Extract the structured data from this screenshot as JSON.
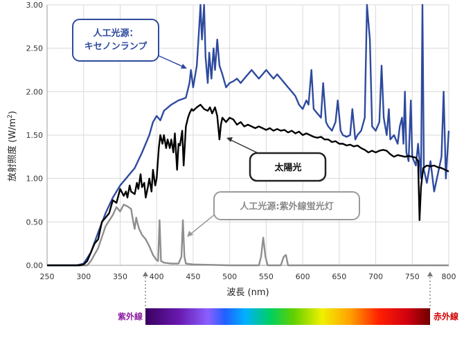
{
  "chart_data": {
    "type": "line",
    "xlabel": "波長 (nm)",
    "ylabel_main": "放射照度 (W/m",
    "ylabel_sup": "2",
    "ylabel_close": ")",
    "xlim": [
      250,
      800
    ],
    "ylim": [
      0,
      3
    ],
    "x_ticks": [
      "250",
      "300",
      "350",
      "400",
      "450",
      "500",
      "550",
      "600",
      "650",
      "700",
      "750",
      "800"
    ],
    "y_ticks": [
      "0.00",
      "0.50",
      "1.00",
      "1.50",
      "2.00",
      "2.50",
      "3.00"
    ],
    "grid": true,
    "series": [
      {
        "name": "人工光源：キセノンランプ",
        "color": "#2e4a9e",
        "points": [
          [
            250,
            0.0
          ],
          [
            290,
            0.0
          ],
          [
            300,
            0.02
          ],
          [
            310,
            0.15
          ],
          [
            320,
            0.38
          ],
          [
            330,
            0.6
          ],
          [
            340,
            0.78
          ],
          [
            350,
            0.92
          ],
          [
            360,
            1.02
          ],
          [
            370,
            1.12
          ],
          [
            380,
            1.3
          ],
          [
            390,
            1.5
          ],
          [
            395,
            1.65
          ],
          [
            400,
            1.72
          ],
          [
            405,
            1.67
          ],
          [
            410,
            1.78
          ],
          [
            420,
            1.85
          ],
          [
            430,
            1.9
          ],
          [
            440,
            1.93
          ],
          [
            445,
            2.1
          ],
          [
            447,
            2.25
          ],
          [
            450,
            2.05
          ],
          [
            455,
            2.3
          ],
          [
            458,
            2.7
          ],
          [
            460,
            3.0
          ],
          [
            462,
            2.6
          ],
          [
            465,
            3.0
          ],
          [
            467,
            2.4
          ],
          [
            470,
            2.1
          ],
          [
            472,
            2.45
          ],
          [
            475,
            2.15
          ],
          [
            478,
            2.5
          ],
          [
            480,
            2.25
          ],
          [
            483,
            2.6
          ],
          [
            486,
            2.3
          ],
          [
            490,
            2.2
          ],
          [
            495,
            2.05
          ],
          [
            500,
            2.1
          ],
          [
            505,
            2.12
          ],
          [
            510,
            2.15
          ],
          [
            515,
            2.1
          ],
          [
            520,
            2.15
          ],
          [
            525,
            2.2
          ],
          [
            530,
            2.25
          ],
          [
            535,
            2.2
          ],
          [
            540,
            2.15
          ],
          [
            545,
            2.2
          ],
          [
            550,
            2.25
          ],
          [
            555,
            2.2
          ],
          [
            560,
            2.15
          ],
          [
            565,
            2.2
          ],
          [
            570,
            2.15
          ],
          [
            575,
            2.1
          ],
          [
            580,
            2.05
          ],
          [
            585,
            2.0
          ],
          [
            590,
            1.95
          ],
          [
            595,
            1.85
          ],
          [
            600,
            1.8
          ],
          [
            605,
            1.9
          ],
          [
            608,
            1.85
          ],
          [
            612,
            2.25
          ],
          [
            615,
            1.8
          ],
          [
            620,
            1.75
          ],
          [
            625,
            1.7
          ],
          [
            628,
            2.1
          ],
          [
            632,
            1.65
          ],
          [
            635,
            1.6
          ],
          [
            640,
            1.55
          ],
          [
            645,
            1.65
          ],
          [
            648,
            1.9
          ],
          [
            652,
            1.55
          ],
          [
            655,
            1.5
          ],
          [
            660,
            1.48
          ],
          [
            665,
            1.5
          ],
          [
            668,
            1.8
          ],
          [
            672,
            1.45
          ],
          [
            675,
            1.5
          ],
          [
            680,
            1.55
          ],
          [
            685,
            1.7
          ],
          [
            688,
            3.0
          ],
          [
            692,
            2.6
          ],
          [
            695,
            1.6
          ],
          [
            700,
            1.55
          ],
          [
            705,
            1.65
          ],
          [
            708,
            2.3
          ],
          [
            711,
            1.7
          ],
          [
            715,
            1.5
          ],
          [
            718,
            1.8
          ],
          [
            720,
            1.45
          ],
          [
            725,
            1.5
          ],
          [
            730,
            1.4
          ],
          [
            733,
            1.6
          ],
          [
            736,
            1.7
          ],
          [
            738,
            1.4
          ],
          [
            740,
            2.0
          ],
          [
            742,
            1.3
          ],
          [
            745,
            1.2
          ],
          [
            748,
            1.9
          ],
          [
            750,
            1.25
          ],
          [
            755,
            1.15
          ],
          [
            758,
            1.4
          ],
          [
            760,
            1.2
          ],
          [
            762,
            1.0
          ],
          [
            764,
            3.0
          ],
          [
            766,
            1.1
          ],
          [
            770,
            0.95
          ],
          [
            775,
            1.2
          ],
          [
            780,
            0.85
          ],
          [
            785,
            1.05
          ],
          [
            790,
            1.25
          ],
          [
            793,
            2.0
          ],
          [
            796,
            1.0
          ],
          [
            800,
            1.55
          ]
        ]
      },
      {
        "name": "太陽光",
        "color": "#000000",
        "points": [
          [
            250,
            0.0
          ],
          [
            295,
            0.0
          ],
          [
            300,
            0.01
          ],
          [
            305,
            0.05
          ],
          [
            310,
            0.15
          ],
          [
            315,
            0.25
          ],
          [
            320,
            0.3
          ],
          [
            325,
            0.5
          ],
          [
            330,
            0.55
          ],
          [
            335,
            0.6
          ],
          [
            340,
            0.75
          ],
          [
            345,
            0.72
          ],
          [
            350,
            0.88
          ],
          [
            355,
            0.8
          ],
          [
            358,
            0.85
          ],
          [
            360,
            0.78
          ],
          [
            363,
            0.92
          ],
          [
            365,
            0.85
          ],
          [
            370,
            0.82
          ],
          [
            373,
            0.95
          ],
          [
            375,
            0.88
          ],
          [
            378,
            1.05
          ],
          [
            380,
            0.9
          ],
          [
            383,
            0.95
          ],
          [
            385,
            0.78
          ],
          [
            388,
            0.9
          ],
          [
            390,
            1.0
          ],
          [
            393,
            0.85
          ],
          [
            395,
            1.1
          ],
          [
            398,
            0.92
          ],
          [
            400,
            1.0
          ],
          [
            403,
            1.35
          ],
          [
            405,
            1.5
          ],
          [
            408,
            1.4
          ],
          [
            410,
            1.5
          ],
          [
            413,
            1.35
          ],
          [
            415,
            1.45
          ],
          [
            418,
            1.35
          ],
          [
            420,
            1.45
          ],
          [
            423,
            1.3
          ],
          [
            425,
            1.52
          ],
          [
            428,
            1.1
          ],
          [
            430,
            1.4
          ],
          [
            432,
            1.38
          ],
          [
            435,
            1.55
          ],
          [
            437,
            1.15
          ],
          [
            440,
            1.6
          ],
          [
            443,
            1.7
          ],
          [
            445,
            1.75
          ],
          [
            448,
            1.8
          ],
          [
            450,
            1.78
          ],
          [
            455,
            1.82
          ],
          [
            460,
            1.85
          ],
          [
            465,
            1.8
          ],
          [
            470,
            1.78
          ],
          [
            473,
            1.82
          ],
          [
            476,
            1.75
          ],
          [
            480,
            1.82
          ],
          [
            483,
            1.72
          ],
          [
            486,
            1.45
          ],
          [
            488,
            1.62
          ],
          [
            490,
            1.7
          ],
          [
            495,
            1.65
          ],
          [
            500,
            1.7
          ],
          [
            505,
            1.68
          ],
          [
            510,
            1.62
          ],
          [
            515,
            1.65
          ],
          [
            520,
            1.6
          ],
          [
            525,
            1.62
          ],
          [
            530,
            1.6
          ],
          [
            535,
            1.58
          ],
          [
            540,
            1.6
          ],
          [
            545,
            1.58
          ],
          [
            550,
            1.56
          ],
          [
            555,
            1.58
          ],
          [
            560,
            1.55
          ],
          [
            565,
            1.57
          ],
          [
            570,
            1.55
          ],
          [
            575,
            1.56
          ],
          [
            580,
            1.53
          ],
          [
            585,
            1.55
          ],
          [
            590,
            1.52
          ],
          [
            595,
            1.54
          ],
          [
            600,
            1.5
          ],
          [
            605,
            1.52
          ],
          [
            610,
            1.5
          ],
          [
            615,
            1.48
          ],
          [
            620,
            1.47
          ],
          [
            625,
            1.48
          ],
          [
            630,
            1.45
          ],
          [
            635,
            1.45
          ],
          [
            640,
            1.42
          ],
          [
            645,
            1.43
          ],
          [
            650,
            1.4
          ],
          [
            655,
            1.4
          ],
          [
            660,
            1.38
          ],
          [
            665,
            1.39
          ],
          [
            670,
            1.37
          ],
          [
            675,
            1.38
          ],
          [
            680,
            1.35
          ],
          [
            685,
            1.33
          ],
          [
            690,
            1.3
          ],
          [
            695,
            1.32
          ],
          [
            700,
            1.3
          ],
          [
            705,
            1.32
          ],
          [
            710,
            1.33
          ],
          [
            715,
            1.32
          ],
          [
            720,
            1.28
          ],
          [
            725,
            1.25
          ],
          [
            730,
            1.27
          ],
          [
            735,
            1.26
          ],
          [
            740,
            1.25
          ],
          [
            745,
            1.26
          ],
          [
            750,
            1.25
          ],
          [
            755,
            1.24
          ],
          [
            758,
            1.2
          ],
          [
            760,
            0.52
          ],
          [
            762,
            0.9
          ],
          [
            765,
            1.12
          ],
          [
            770,
            1.15
          ],
          [
            775,
            1.14
          ],
          [
            780,
            1.15
          ],
          [
            785,
            1.13
          ],
          [
            790,
            1.12
          ],
          [
            795,
            1.1
          ],
          [
            800,
            1.08
          ]
        ]
      },
      {
        "name": "人工光源:紫外線蛍光灯",
        "color": "#8e8e8e",
        "points": [
          [
            250,
            0.0
          ],
          [
            305,
            0.0
          ],
          [
            310,
            0.05
          ],
          [
            320,
            0.2
          ],
          [
            330,
            0.45
          ],
          [
            340,
            0.58
          ],
          [
            345,
            0.67
          ],
          [
            350,
            0.62
          ],
          [
            355,
            0.7
          ],
          [
            360,
            0.68
          ],
          [
            365,
            0.65
          ],
          [
            368,
            0.5
          ],
          [
            370,
            0.42
          ],
          [
            372,
            0.55
          ],
          [
            374,
            0.48
          ],
          [
            376,
            0.42
          ],
          [
            380,
            0.35
          ],
          [
            385,
            0.3
          ],
          [
            390,
            0.22
          ],
          [
            395,
            0.12
          ],
          [
            400,
            0.06
          ],
          [
            402,
            0.05
          ],
          [
            404,
            0.52
          ],
          [
            406,
            0.05
          ],
          [
            410,
            0.03
          ],
          [
            420,
            0.02
          ],
          [
            430,
            0.02
          ],
          [
            434,
            0.1
          ],
          [
            436,
            0.52
          ],
          [
            438,
            0.1
          ],
          [
            440,
            0.02
          ],
          [
            450,
            0.01
          ],
          [
            500,
            0.0
          ],
          [
            540,
            0.0
          ],
          [
            543,
            0.1
          ],
          [
            546,
            0.32
          ],
          [
            549,
            0.1
          ],
          [
            552,
            0.0
          ],
          [
            570,
            0.0
          ],
          [
            574,
            0.1
          ],
          [
            577,
            0.12
          ],
          [
            580,
            0.0
          ],
          [
            600,
            0.0
          ],
          [
            700,
            0.0
          ],
          [
            800,
            0.0
          ]
        ]
      }
    ],
    "annotations": {
      "xenon": "人工光源：\nキセノンランプ",
      "sun": "太陽光",
      "uv": "人工光源:紫外線蛍光灯"
    },
    "spectrum": {
      "uv_label": "紫外線",
      "ir_label": "赤外線",
      "uv_color": "#8b1fa0",
      "ir_color": "#d10000"
    },
    "palette": {
      "grid": "#d9d9d9",
      "xenon_box": "#2e4a9e",
      "uv_box": "#9a9a9a"
    }
  }
}
